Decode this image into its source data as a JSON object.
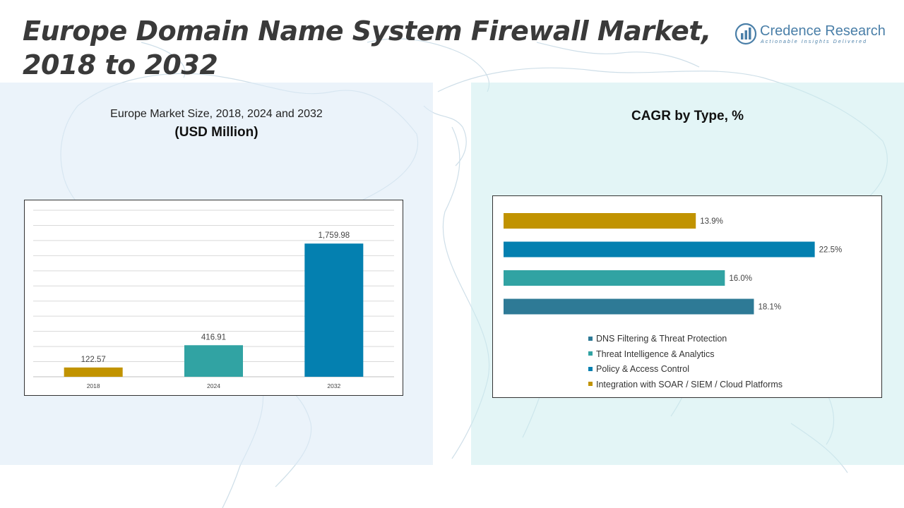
{
  "page": {
    "title": "Europe Domain Name System Firewall Market, 2018 to 2032"
  },
  "logo": {
    "name": "Credence Research",
    "tagline": "Actionable Insights Delivered",
    "icon": "bar-chart-globe-icon",
    "color": "#4a7fa8"
  },
  "left_panel": {
    "subtitle": "Europe Market Size, 2018, 2024 and 2032",
    "unit": "(USD Million)"
  },
  "right_panel": {
    "title": "CAGR by Type, %"
  },
  "chart_data": [
    {
      "type": "bar",
      "orientation": "vertical",
      "categories": [
        "2018",
        "2024",
        "2032"
      ],
      "values": [
        122.57,
        416.91,
        1759.98
      ],
      "value_labels": [
        "122.57",
        "416.91",
        "1,759.98"
      ],
      "colors": [
        "#c19300",
        "#31a3a3",
        "#0480b0"
      ],
      "ylim": [
        0,
        2200
      ],
      "grid": true,
      "legend": "none"
    },
    {
      "type": "bar",
      "orientation": "horizontal",
      "categories": [
        "Integration with SOAR / SIEM / Cloud Platforms",
        "Policy & Access Control",
        "Threat Intelligence & Analytics",
        "DNS Filtering & Threat Protection"
      ],
      "values": [
        13.9,
        22.5,
        16.0,
        18.1
      ],
      "value_labels": [
        "13.9%",
        "22.5%",
        "16.0%",
        "18.1%"
      ],
      "colors": [
        "#c19300",
        "#0480b0",
        "#31a3a3",
        "#2e7a96"
      ],
      "xlim": [
        0,
        24
      ],
      "grid": false,
      "legend": "bottom",
      "legend_entries": [
        {
          "label": "DNS Filtering & Threat Protection",
          "color": "#2e7a96"
        },
        {
          "label": "Threat Intelligence & Analytics",
          "color": "#31a3a3"
        },
        {
          "label": "Policy & Access Control",
          "color": "#0480b0"
        },
        {
          "label": "Integration with SOAR / SIEM / Cloud Platforms",
          "color": "#c19300"
        }
      ]
    }
  ]
}
